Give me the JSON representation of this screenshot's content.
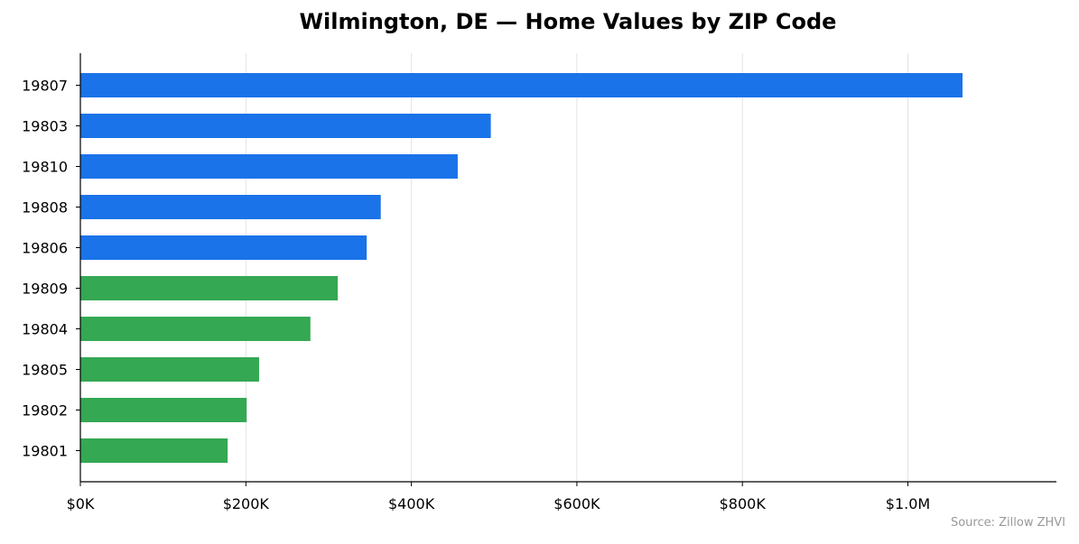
{
  "chart_data": {
    "type": "bar",
    "orientation": "horizontal",
    "title": "Wilmington, DE — Home Values by ZIP Code",
    "xlabel": "",
    "ylabel": "",
    "xlim": [
      0,
      1120000
    ],
    "x_ticks": [
      {
        "value": 0,
        "label": "$0K"
      },
      {
        "value": 200000,
        "label": "$200K"
      },
      {
        "value": 400000,
        "label": "$400K"
      },
      {
        "value": 600000,
        "label": "$600K"
      },
      {
        "value": 800000,
        "label": "$800K"
      },
      {
        "value": 1000000,
        "label": "$1.0M"
      }
    ],
    "grid": "vertical",
    "categories": [
      "19807",
      "19803",
      "19810",
      "19808",
      "19806",
      "19809",
      "19804",
      "19805",
      "19802",
      "19801"
    ],
    "values": [
      1066000,
      496000,
      456000,
      363000,
      346000,
      311000,
      278000,
      216000,
      201000,
      178000
    ],
    "bar_colors": [
      "#1a73e8",
      "#1a73e8",
      "#1a73e8",
      "#1a73e8",
      "#1a73e8",
      "#34a853",
      "#34a853",
      "#34a853",
      "#34a853",
      "#34a853"
    ],
    "source": "Source: Zillow ZHVI"
  }
}
